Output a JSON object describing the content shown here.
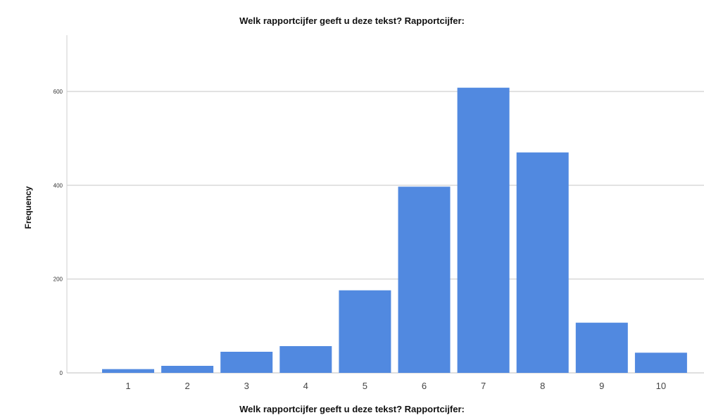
{
  "chart_data": {
    "type": "bar",
    "title": "Welk rapportcijfer geeft u deze tekst? Rapportcijfer:",
    "xlabel": "Welk rapportcijfer geeft u deze tekst? Rapportcijfer:",
    "ylabel": "Frequency",
    "categories": [
      "1",
      "2",
      "3",
      "4",
      "5",
      "6",
      "7",
      "8",
      "9",
      "10"
    ],
    "values": [
      8,
      15,
      45,
      57,
      176,
      397,
      608,
      470,
      107,
      43
    ],
    "ylim": [
      0,
      720
    ],
    "yticks": [
      0,
      200,
      400,
      600
    ],
    "grid": true,
    "bar_color": "#5189e0",
    "grid_color": "#d9d9d9"
  }
}
